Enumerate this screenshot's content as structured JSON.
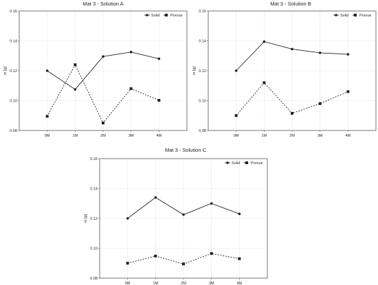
{
  "chart_data": [
    {
      "type": "line",
      "title": "Mat 3 - Solution A",
      "xlabel": "",
      "ylabel": "m [g]",
      "categories": [
        "0M",
        "1M",
        "2M",
        "3M",
        "4M"
      ],
      "ylim": [
        0.08,
        0.16
      ],
      "yticks": [
        "0.08",
        "0.10",
        "0.12",
        "0.14",
        "0.16"
      ],
      "grid": true,
      "legend_position": "top-right",
      "series": [
        {
          "name": "Solid",
          "style": "solid",
          "marker": "circle",
          "values": [
            0.12,
            0.1075,
            0.1295,
            0.1325,
            0.128
          ]
        },
        {
          "name": "Porous",
          "style": "dashed",
          "marker": "square",
          "values": [
            0.0895,
            0.124,
            0.085,
            0.108,
            0.1002
          ]
        }
      ]
    },
    {
      "type": "line",
      "title": "Mat 3 - Solution B",
      "xlabel": "",
      "ylabel": "m [g]",
      "categories": [
        "0M",
        "1M",
        "2M",
        "3M",
        "4M"
      ],
      "ylim": [
        0.08,
        0.16
      ],
      "yticks": [
        "0.08",
        "0.10",
        "0.12",
        "0.14",
        "0.16"
      ],
      "grid": true,
      "legend_position": "top-right",
      "series": [
        {
          "name": "Solid",
          "style": "solid",
          "marker": "circle",
          "values": [
            0.12,
            0.1395,
            0.1345,
            0.132,
            0.131
          ]
        },
        {
          "name": "Porous",
          "style": "dashed",
          "marker": "square",
          "values": [
            0.09,
            0.112,
            0.0915,
            0.098,
            0.106
          ]
        }
      ]
    },
    {
      "type": "line",
      "title": "Mat 3 - Solution C",
      "xlabel": "",
      "ylabel": "m [g]",
      "categories": [
        "0M",
        "1M",
        "2M",
        "3M",
        "4M"
      ],
      "ylim": [
        0.08,
        0.16
      ],
      "yticks": [
        "0.08",
        "0.10",
        "0.12",
        "0.14",
        "0.16"
      ],
      "grid": true,
      "legend_position": "top-right",
      "series": [
        {
          "name": "Solid",
          "style": "solid",
          "marker": "circle",
          "values": [
            0.12,
            0.134,
            0.1225,
            0.13,
            0.123
          ]
        },
        {
          "name": "Porous",
          "style": "dashed",
          "marker": "square",
          "values": [
            0.09,
            0.0948,
            0.0895,
            0.0965,
            0.093
          ]
        }
      ]
    }
  ],
  "colors": {
    "line": "#222222",
    "axis": "#555555",
    "grid": "#c8c8c8",
    "background": "#ffffff"
  }
}
